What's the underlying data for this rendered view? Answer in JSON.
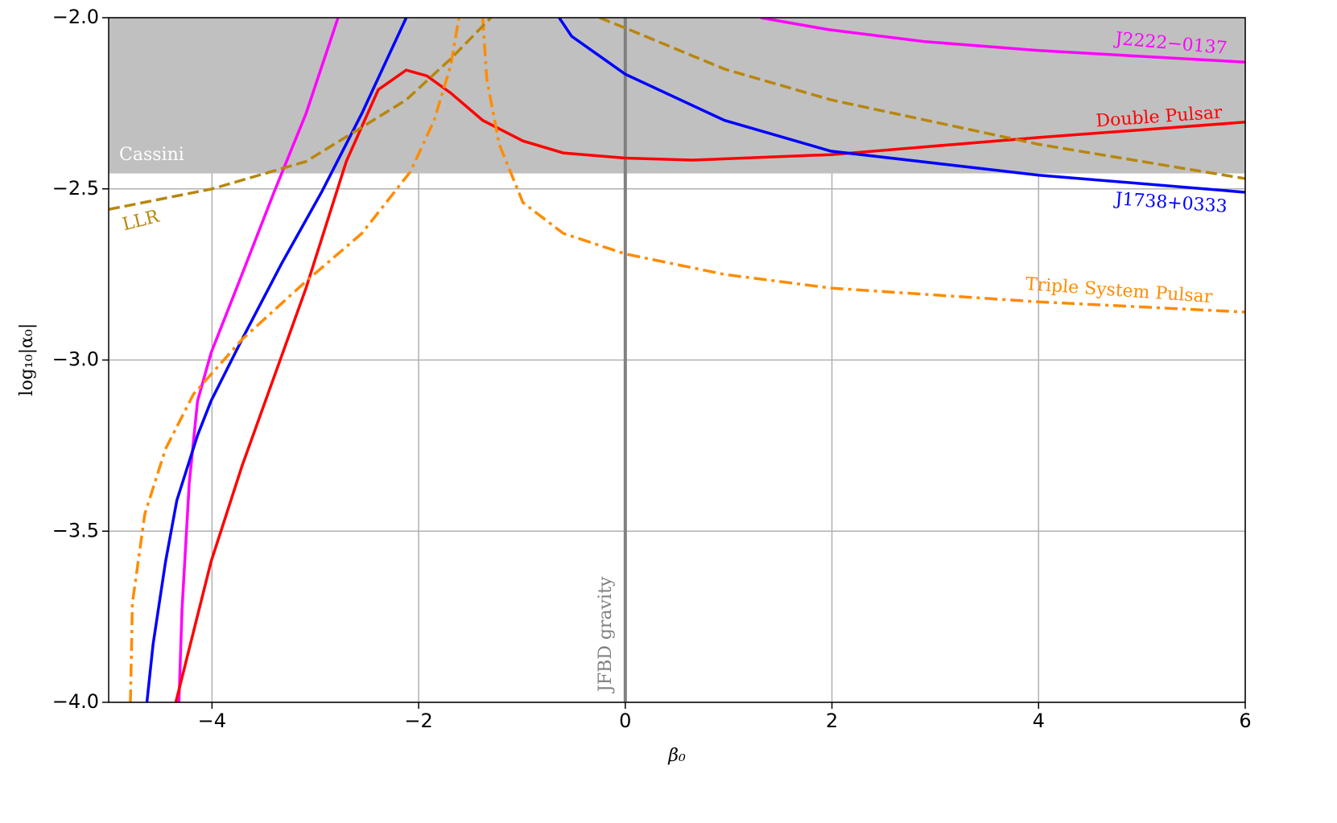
{
  "chart_data": {
    "type": "line",
    "xlabel": "β₀",
    "ylabel": "log₁₀|α₀|",
    "xlim": [
      -5,
      6
    ],
    "ylim": [
      -4,
      -2
    ],
    "xticks": [
      {
        "value": -4,
        "label": "−4"
      },
      {
        "value": -2,
        "label": "−2"
      },
      0,
      2,
      4,
      6
    ],
    "yticks": [
      {
        "value": -4,
        "label": "−4.0"
      },
      {
        "value": -3.5,
        "label": "−3.5"
      },
      {
        "value": -3,
        "label": "−3.0"
      },
      {
        "value": -2.5,
        "label": "−2.5"
      },
      {
        "value": -2,
        "label": "−2.0"
      }
    ],
    "grid": true,
    "shaded_region": {
      "label": "Cassini",
      "ylim": [
        -2.455,
        -2
      ],
      "color": "#c0c0c0"
    },
    "reference_line": {
      "label": "JFBD gravity",
      "x": 0,
      "color": "#808080"
    },
    "series": [
      {
        "name": "J2222−0137",
        "color": "#ff00ff",
        "dash": "solid",
        "x": [
          -4.32,
          -4.29,
          -4.22,
          -4.14,
          -4.01,
          -3.71,
          -3.4,
          -3.09,
          -2.78,
          null,
          1.31,
          1.97,
          2.9,
          4.0,
          6.0
        ],
        "values": [
          -4,
          -3.73,
          -3.36,
          -3.12,
          -2.98,
          -2.75,
          -2.51,
          -2.28,
          -2.0,
          null,
          -2.0,
          -2.035,
          -2.07,
          -2.096,
          -2.13
        ]
      },
      {
        "name": "Double Pulsar",
        "color": "#ff0000",
        "dash": "solid",
        "x": [
          -4.35,
          -4.01,
          -3.71,
          -3.09,
          -2.7,
          -2.39,
          -2.12,
          -1.92,
          -1.69,
          -1.38,
          -0.99,
          -0.6,
          0,
          0.65,
          1.99,
          4.0,
          6.0
        ],
        "values": [
          -4,
          -3.59,
          -3.31,
          -2.79,
          -2.42,
          -2.21,
          -2.153,
          -2.17,
          -2.22,
          -2.3,
          -2.36,
          -2.395,
          -2.41,
          -2.416,
          -2.4,
          -2.35,
          -2.305
        ]
      },
      {
        "name": "J1738+0333",
        "color": "#0000ff",
        "dash": "solid",
        "x": [
          -4.63,
          -4.57,
          -4.45,
          -4.34,
          -4.14,
          -4.01,
          -3.71,
          -3.33,
          -2.94,
          -2.55,
          -2.12,
          null,
          -0.64,
          -0.52,
          0,
          0.96,
          1.99,
          4.0,
          6.0
        ],
        "values": [
          -4,
          -3.83,
          -3.59,
          -3.41,
          -3.22,
          -3.12,
          -2.94,
          -2.72,
          -2.51,
          -2.28,
          -2.0,
          null,
          -2.0,
          -2.054,
          -2.165,
          -2.3,
          -2.39,
          -2.46,
          -2.51
        ]
      },
      {
        "name": "Triple System Pulsar",
        "color": "#ff8c00",
        "dash": "dashdot",
        "x": [
          -4.79,
          -4.77,
          -4.65,
          -4.45,
          -4.18,
          -3.71,
          -3.09,
          -2.55,
          -2.08,
          -1.85,
          -1.69,
          -1.61,
          null,
          -1.38,
          -1.34,
          -1.22,
          -0.99,
          -0.6,
          0,
          0.96,
          1.99,
          4.0,
          6.0
        ],
        "values": [
          -4,
          -3.71,
          -3.45,
          -3.26,
          -3.1,
          -2.94,
          -2.77,
          -2.63,
          -2.45,
          -2.3,
          -2.14,
          -2.0,
          null,
          -2.0,
          -2.18,
          -2.37,
          -2.54,
          -2.63,
          -2.69,
          -2.75,
          -2.79,
          -2.83,
          -2.86
        ]
      },
      {
        "name": "LLR",
        "color": "#b8860b",
        "dash": "dashed",
        "x": [
          -5,
          -4,
          -3.09,
          -2.55,
          -2.12,
          -1.69,
          -1.3,
          null,
          -0.25,
          0,
          0.96,
          1.99,
          4.0,
          6.0
        ],
        "values": [
          -2.56,
          -2.5,
          -2.42,
          -2.32,
          -2.24,
          -2.12,
          -2.0,
          null,
          -2.0,
          -2.03,
          -2.15,
          -2.24,
          -2.37,
          -2.47
        ]
      }
    ]
  }
}
